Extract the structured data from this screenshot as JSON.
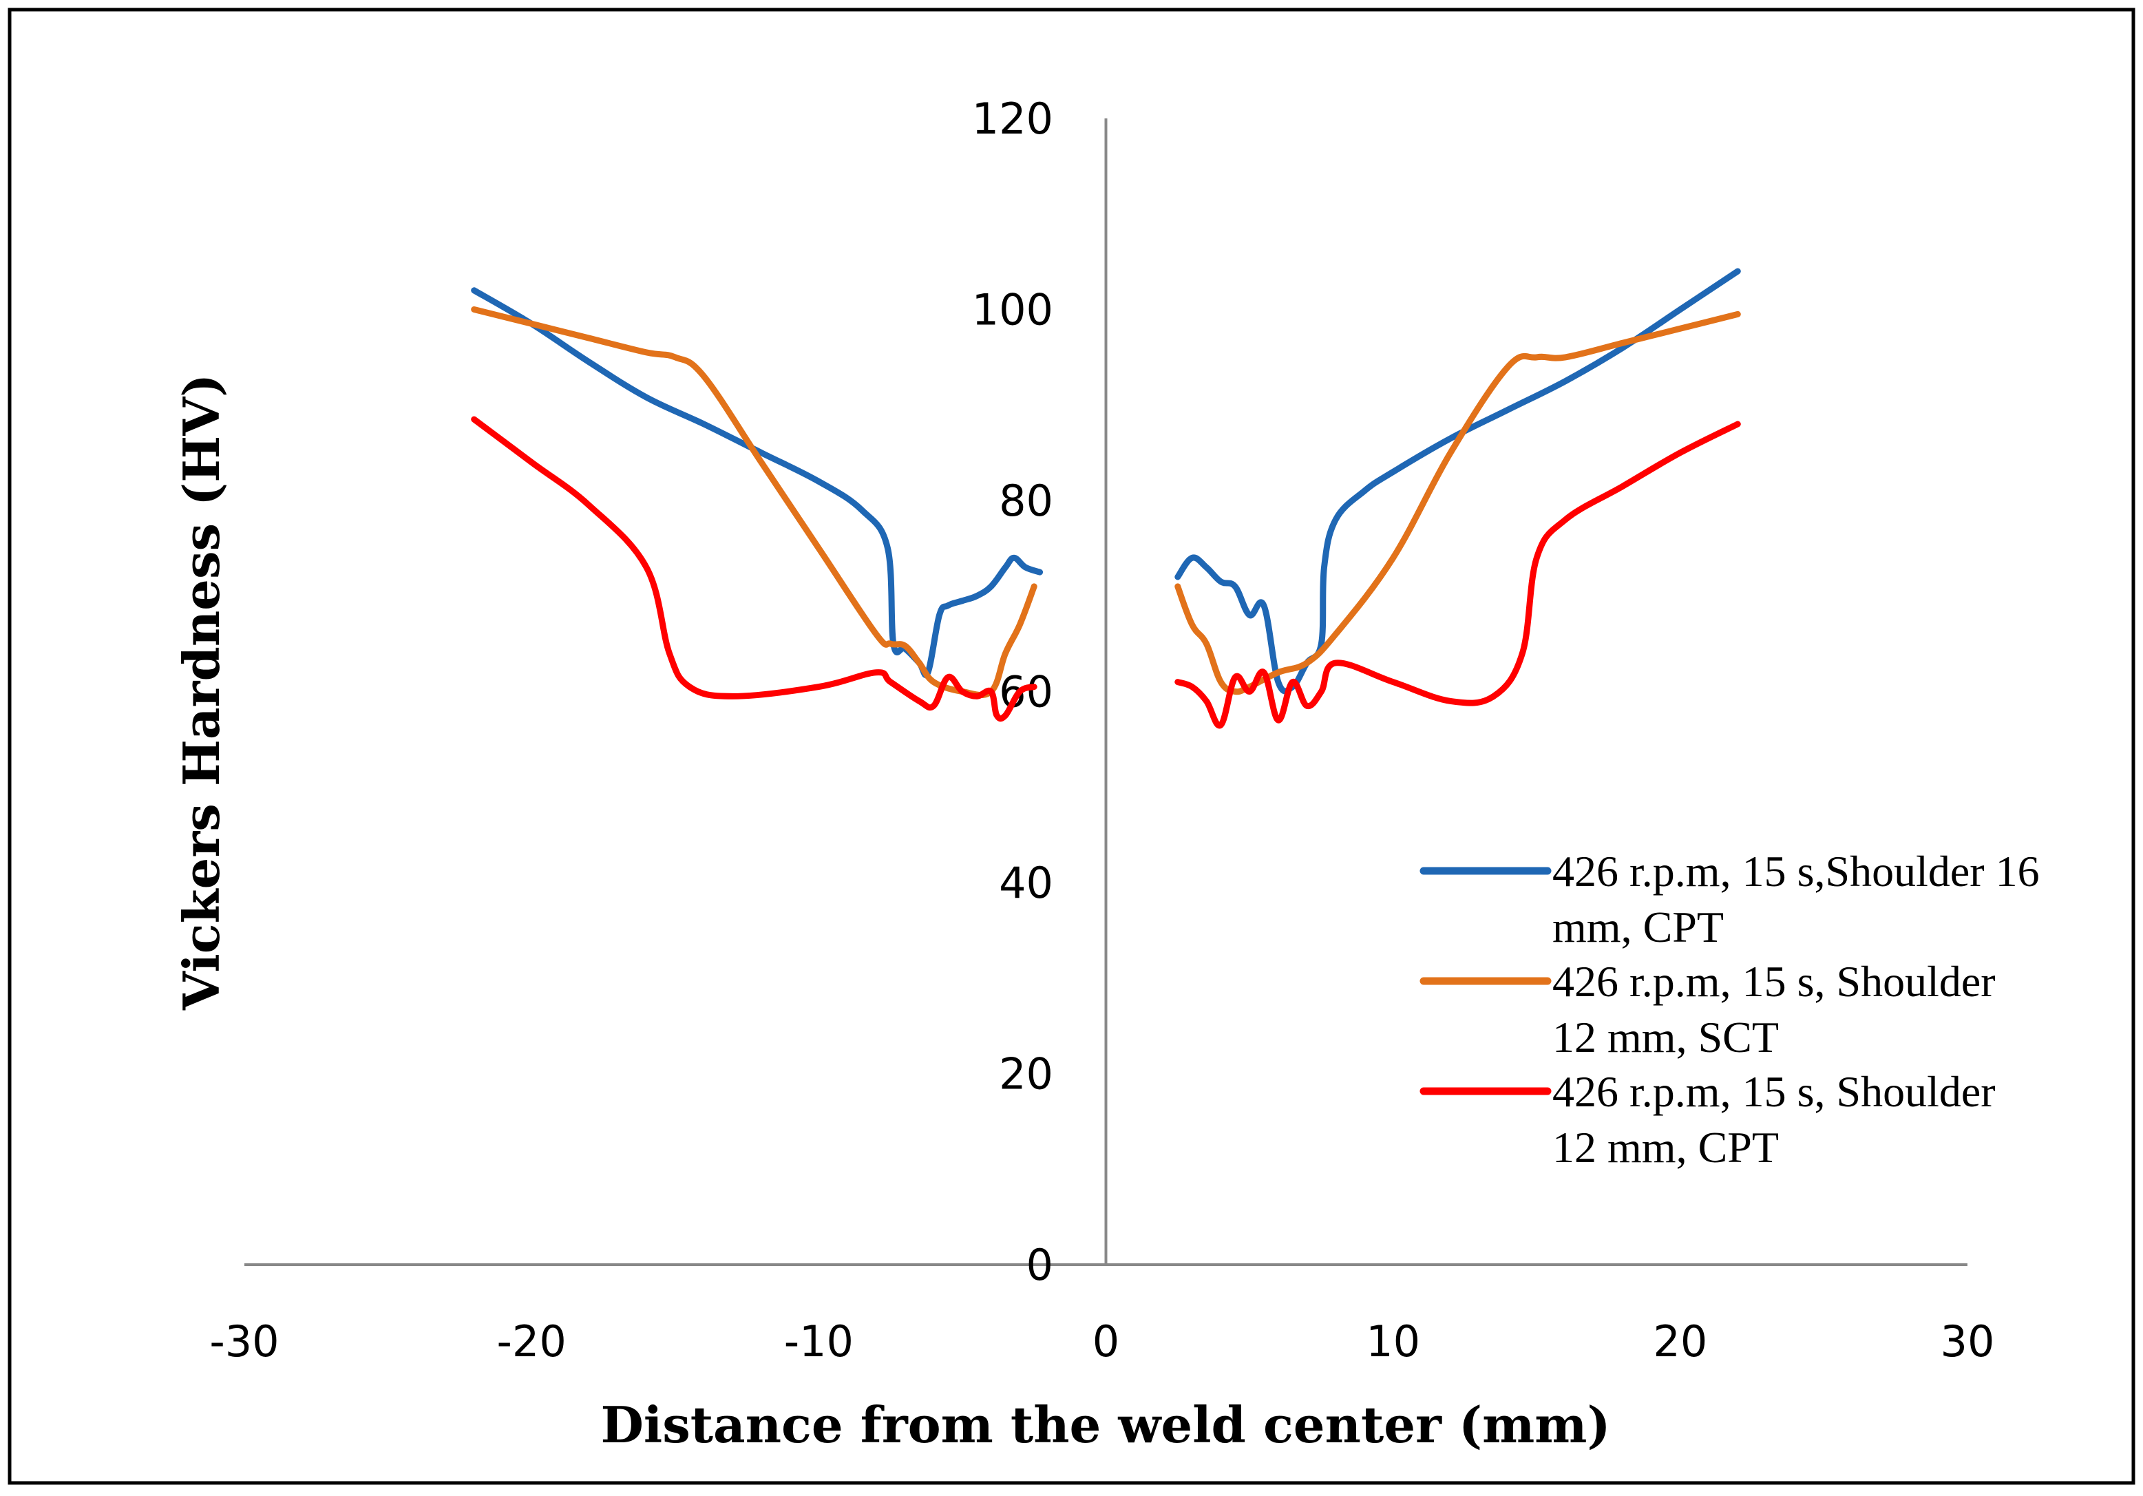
{
  "chart_data": {
    "type": "line",
    "title": "",
    "xlabel": "Distance from the weld center (mm)",
    "ylabel": "Vickers Hardness (HV)",
    "xlim": [
      -30,
      30
    ],
    "ylim": [
      0,
      120
    ],
    "x_ticks": [
      "-30",
      "-20",
      "-10",
      "0",
      "10",
      "20",
      "30"
    ],
    "y_ticks": [
      "0",
      "20",
      "40",
      "60",
      "80",
      "100",
      "120"
    ],
    "legend_position": "right",
    "series": [
      {
        "name": "426 r.p.m, 15 s,Shoulder 16 mm, CPT",
        "legend_lines": [
          "426 r.p.m, 15 s,Shoulder 16",
          "mm, CPT"
        ],
        "color": "#1F67B4",
        "segments": [
          [
            [
              -22,
              102
            ],
            [
              -20,
              98.5
            ],
            [
              -18,
              94.5
            ],
            [
              -16,
              90.8
            ],
            [
              -14,
              88
            ],
            [
              -12,
              85
            ],
            [
              -10,
              82
            ],
            [
              -8.5,
              79
            ],
            [
              -7.6,
              75
            ],
            [
              -7.4,
              65
            ],
            [
              -7.0,
              64.5
            ],
            [
              -6.5,
              63
            ],
            [
              -6.2,
              62
            ],
            [
              -5.8,
              68
            ],
            [
              -5.5,
              69
            ],
            [
              -5.0,
              69.5
            ],
            [
              -4.5,
              70
            ],
            [
              -4.0,
              71
            ],
            [
              -3.5,
              73
            ],
            [
              -3.2,
              74
            ],
            [
              -2.8,
              73
            ],
            [
              -2.3,
              72.5
            ]
          ],
          [
            [
              2.5,
              72
            ],
            [
              3.0,
              74
            ],
            [
              3.5,
              73
            ],
            [
              4.0,
              71.5
            ],
            [
              4.5,
              71
            ],
            [
              5.0,
              68
            ],
            [
              5.5,
              69
            ],
            [
              6.0,
              61
            ],
            [
              6.5,
              60.5
            ],
            [
              7.0,
              63
            ],
            [
              7.5,
              65
            ],
            [
              7.6,
              73
            ],
            [
              8.0,
              78
            ],
            [
              9,
              81
            ],
            [
              10,
              83
            ],
            [
              12,
              86.5
            ],
            [
              14,
              89.5
            ],
            [
              16,
              92.5
            ],
            [
              18,
              96
            ],
            [
              20,
              100
            ],
            [
              22,
              104
            ]
          ]
        ]
      },
      {
        "name": "426 r.p.m, 15 s, Shoulder 12 mm, SCT",
        "legend_lines": [
          "426 r.p.m, 15 s, Shoulder",
          "12 mm, SCT"
        ],
        "color": "#E2721A",
        "segments": [
          [
            [
              -22,
              100
            ],
            [
              -20,
              98.5
            ],
            [
              -18,
              97
            ],
            [
              -16,
              95.5
            ],
            [
              -15,
              95
            ],
            [
              -14,
              93
            ],
            [
              -12,
              84
            ],
            [
              -10,
              75
            ],
            [
              -8,
              66
            ],
            [
              -7.5,
              65
            ],
            [
              -7,
              64.8
            ],
            [
              -6.5,
              63
            ],
            [
              -6,
              61
            ],
            [
              -5,
              60
            ],
            [
              -4,
              60
            ],
            [
              -3.5,
              64
            ],
            [
              -3,
              67
            ],
            [
              -2.5,
              71
            ]
          ],
          [
            [
              2.5,
              71
            ],
            [
              3.0,
              67
            ],
            [
              3.5,
              65
            ],
            [
              4.0,
              61
            ],
            [
              4.5,
              60
            ],
            [
              5.0,
              60.5
            ],
            [
              6.0,
              62
            ],
            [
              7.0,
              63
            ],
            [
              8.0,
              66
            ],
            [
              10,
              74
            ],
            [
              12,
              85
            ],
            [
              14,
              94
            ],
            [
              15,
              95
            ],
            [
              16,
              95
            ],
            [
              18,
              96.5
            ],
            [
              20,
              98
            ],
            [
              22,
              99.5
            ]
          ]
        ]
      },
      {
        "name": "426 r.p.m, 15 s, Shoulder 12 mm, CPT",
        "legend_lines": [
          "426 r.p.m, 15 s, Shoulder",
          "12 mm, CPT"
        ],
        "color": "#FF0000",
        "segments": [
          [
            [
              -22,
              88.5
            ],
            [
              -20,
              84
            ],
            [
              -18,
              79.5
            ],
            [
              -16,
              73
            ],
            [
              -15.2,
              64
            ],
            [
              -14.5,
              60.5
            ],
            [
              -13,
              59.5
            ],
            [
              -10,
              60.5
            ],
            [
              -8,
              62
            ],
            [
              -7.5,
              61
            ],
            [
              -6.5,
              59
            ],
            [
              -6.0,
              58.5
            ],
            [
              -5.5,
              61.5
            ],
            [
              -5.0,
              60
            ],
            [
              -4.5,
              59.5
            ],
            [
              -4.0,
              60
            ],
            [
              -3.8,
              57.5
            ],
            [
              -3.5,
              57.5
            ],
            [
              -3.0,
              60
            ],
            [
              -2.5,
              60.5
            ]
          ],
          [
            [
              2.5,
              61
            ],
            [
              3.0,
              60.5
            ],
            [
              3.5,
              59
            ],
            [
              4.0,
              56.5
            ],
            [
              4.5,
              61.5
            ],
            [
              5.0,
              60
            ],
            [
              5.5,
              62
            ],
            [
              6.0,
              57
            ],
            [
              6.5,
              61
            ],
            [
              7.0,
              58.5
            ],
            [
              7.5,
              60
            ],
            [
              8.0,
              63
            ],
            [
              10,
              61
            ],
            [
              12,
              59
            ],
            [
              13.5,
              59.5
            ],
            [
              14.5,
              64
            ],
            [
              15,
              74
            ],
            [
              16,
              78
            ],
            [
              18,
              81.5
            ],
            [
              20,
              85
            ],
            [
              22,
              88
            ]
          ]
        ]
      }
    ]
  }
}
